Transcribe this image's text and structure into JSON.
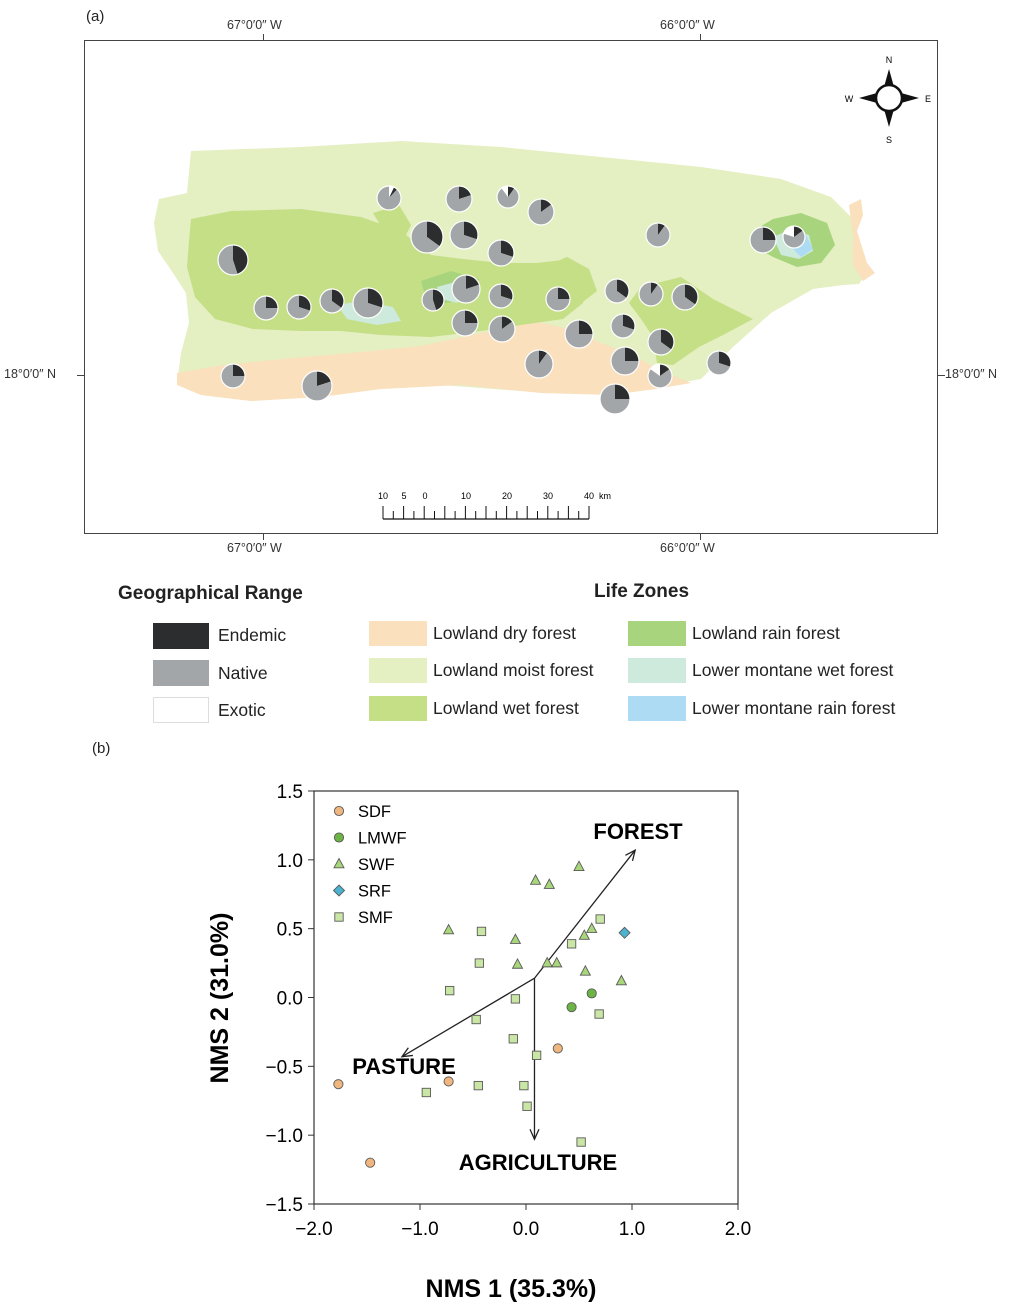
{
  "panel_a": {
    "label": "(a)",
    "top_lon": [
      "67°0′0″ W",
      "66°0′0″ W"
    ],
    "bottom_lon": [
      "67°0′0″ W",
      "66°0′0″ W"
    ],
    "left_lat": "18°0′0″ N",
    "right_lat": "18°0′0″ N",
    "compass": {
      "n": "N",
      "s": "S",
      "e": "E",
      "w": "W"
    },
    "scale": {
      "ticks": [
        "10",
        "5",
        "0",
        "10",
        "20",
        "30",
        "40"
      ],
      "unit": "km"
    },
    "pies": [
      {
        "e": 0.12,
        "n": 0.88,
        "x": 0.07
      },
      {
        "e": 0.2,
        "n": 0.8,
        "x": 0.0
      },
      {
        "e": 0.1,
        "n": 0.8,
        "x": 0.1
      },
      {
        "e": 0.15,
        "n": 0.85,
        "x": 0.0
      },
      {
        "e": 0.35,
        "n": 0.65,
        "x": 0.0
      },
      {
        "e": 0.3,
        "n": 0.7,
        "x": 0.0
      },
      {
        "e": 0.3,
        "n": 0.7,
        "x": 0.0
      },
      {
        "e": 0.1,
        "n": 0.9,
        "x": 0.0
      },
      {
        "e": 0.45,
        "n": 0.55,
        "x": 0.0
      },
      {
        "e": 0.25,
        "n": 0.75,
        "x": 0.0
      },
      {
        "e": 0.3,
        "n": 0.7,
        "x": 0.0
      },
      {
        "e": 0.35,
        "n": 0.65,
        "x": 0.0
      },
      {
        "e": 0.3,
        "n": 0.7,
        "x": 0.0
      },
      {
        "e": 0.45,
        "n": 0.55,
        "x": 0.0
      },
      {
        "e": 0.2,
        "n": 0.8,
        "x": 0.0
      },
      {
        "e": 0.3,
        "n": 0.7,
        "x": 0.0
      },
      {
        "e": 0.25,
        "n": 0.75,
        "x": 0.0
      },
      {
        "e": 0.35,
        "n": 0.65,
        "x": 0.0
      },
      {
        "e": 0.1,
        "n": 0.9,
        "x": 0.0
      },
      {
        "e": 0.35,
        "n": 0.65,
        "x": 0.0
      },
      {
        "e": 0.25,
        "n": 0.75,
        "x": 0.0
      },
      {
        "e": 0.15,
        "n": 0.85,
        "x": 0.0
      },
      {
        "e": 0.25,
        "n": 0.75,
        "x": 0.0
      },
      {
        "e": 0.3,
        "n": 0.7,
        "x": 0.0
      },
      {
        "e": 0.35,
        "n": 0.65,
        "x": 0.0
      },
      {
        "e": 0.25,
        "n": 0.75,
        "x": 0.0
      },
      {
        "e": 0.1,
        "n": 0.9,
        "x": 0.0
      },
      {
        "e": 0.15,
        "n": 0.7,
        "x": 0.15
      },
      {
        "e": 0.3,
        "n": 0.7,
        "x": 0.0
      },
      {
        "e": 0.25,
        "n": 0.75,
        "x": 0.0
      },
      {
        "e": 0.25,
        "n": 0.75,
        "x": 0.0
      },
      {
        "e": 0.2,
        "n": 0.8,
        "x": 0.0
      },
      {
        "e": 0.25,
        "n": 0.75,
        "x": 0.0
      },
      {
        "e": 0.15,
        "n": 0.65,
        "x": 0.2
      },
      {
        "e": 0.2,
        "n": 0.8,
        "x": 0.0
      },
      {
        "e": 0.3,
        "n": 0.7,
        "x": 0.0
      },
      {
        "e": 0.25,
        "n": 0.55,
        "x": 0.2
      },
      {
        "e": 0.3,
        "n": 0.7,
        "x": 0.0
      },
      {
        "e": 0.25,
        "n": 0.75,
        "x": 0.0
      },
      {
        "e": 0.3,
        "n": 0.7,
        "x": 0.0
      },
      {
        "e": 0.1,
        "n": 0.9,
        "x": 0.0
      },
      {
        "e": 0.35,
        "n": 0.65,
        "x": 0.0
      }
    ]
  },
  "legend": {
    "geo_title": "Geographical Range",
    "geo_items": [
      {
        "label": "Endemic",
        "color": "#2b2d2f"
      },
      {
        "label": "Native",
        "color": "#a3a6a9"
      },
      {
        "label": "Exotic",
        "color": "#ffffff"
      }
    ],
    "lz_title": "Life Zones",
    "lz_items": [
      {
        "label": "Lowland dry forest",
        "color": "#fbe0bd"
      },
      {
        "label": "Lowland moist forest",
        "color": "#e4efc2"
      },
      {
        "label": "Lowland wet forest",
        "color": "#c5df86"
      },
      {
        "label": "Lowland rain forest",
        "color": "#a7d47c"
      },
      {
        "label": "Lower montane wet forest",
        "color": "#cdeadc"
      },
      {
        "label": "Lower montane rain forest",
        "color": "#aedbf4"
      }
    ]
  },
  "panel_b": {
    "label": "(b)"
  },
  "chart_data": {
    "type": "scatter",
    "xlabel": "NMS 1 (35.3%)",
    "ylabel": "NMS 2 (31.0%)",
    "xlim": [
      -2.0,
      2.0
    ],
    "ylim": [
      -1.5,
      1.5
    ],
    "xticks": [
      -2.0,
      -1.0,
      0.0,
      1.0,
      2.0
    ],
    "yticks": [
      -1.5,
      -1.0,
      -0.5,
      0.0,
      0.5,
      1.0,
      1.5
    ],
    "xtick_labels": [
      "−2.0",
      "−1.0",
      "0.0",
      "1.0",
      "2.0"
    ],
    "ytick_labels": [
      "−1.5",
      "−1.0",
      "−0.5",
      "0.0",
      "0.5",
      "1.0",
      "1.5"
    ],
    "legend_position": "top-left",
    "series": [
      {
        "name": "SDF",
        "marker": "circle",
        "color": "#f0b67f",
        "points": [
          [
            -1.77,
            -0.63
          ],
          [
            -1.47,
            -1.2
          ],
          [
            -0.73,
            -0.61
          ],
          [
            0.3,
            -0.37
          ]
        ]
      },
      {
        "name": "LMWF",
        "marker": "circle",
        "color": "#6cb544",
        "points": [
          [
            0.43,
            -0.07
          ],
          [
            0.62,
            0.03
          ]
        ]
      },
      {
        "name": "SWF",
        "marker": "triangle",
        "color": "#a8d67a",
        "points": [
          [
            -0.73,
            0.49
          ],
          [
            -0.1,
            0.42
          ],
          [
            -0.08,
            0.24
          ],
          [
            0.09,
            0.85
          ],
          [
            0.22,
            0.82
          ],
          [
            0.2,
            0.25
          ],
          [
            0.29,
            0.25
          ],
          [
            0.5,
            0.95
          ],
          [
            0.55,
            0.45
          ],
          [
            0.62,
            0.5
          ],
          [
            0.56,
            0.19
          ],
          [
            0.9,
            0.12
          ]
        ]
      },
      {
        "name": "SRF",
        "marker": "diamond",
        "color": "#4ab3d0",
        "points": [
          [
            0.93,
            0.47
          ]
        ]
      },
      {
        "name": "SMF",
        "marker": "square",
        "color": "#c9e6a4",
        "points": [
          [
            -0.42,
            0.48
          ],
          [
            -0.44,
            0.25
          ],
          [
            -0.72,
            0.05
          ],
          [
            -0.1,
            -0.01
          ],
          [
            -0.47,
            -0.16
          ],
          [
            -0.12,
            -0.3
          ],
          [
            0.1,
            -0.42
          ],
          [
            -0.94,
            -0.69
          ],
          [
            -0.45,
            -0.64
          ],
          [
            -0.02,
            -0.64
          ],
          [
            0.01,
            -0.79
          ],
          [
            0.43,
            0.39
          ],
          [
            0.7,
            0.57
          ],
          [
            0.69,
            -0.12
          ],
          [
            0.52,
            -1.05
          ]
        ]
      }
    ],
    "vectors": [
      {
        "label": "FOREST",
        "start": [
          0.08,
          0.14
        ],
        "end": [
          1.03,
          1.07
        ]
      },
      {
        "label": "PASTURE",
        "start": [
          0.08,
          0.14
        ],
        "end": [
          -1.17,
          -0.43
        ]
      },
      {
        "label": "AGRICULTURE",
        "start": [
          0.08,
          0.14
        ],
        "end": [
          0.08,
          -1.03
        ]
      }
    ]
  }
}
